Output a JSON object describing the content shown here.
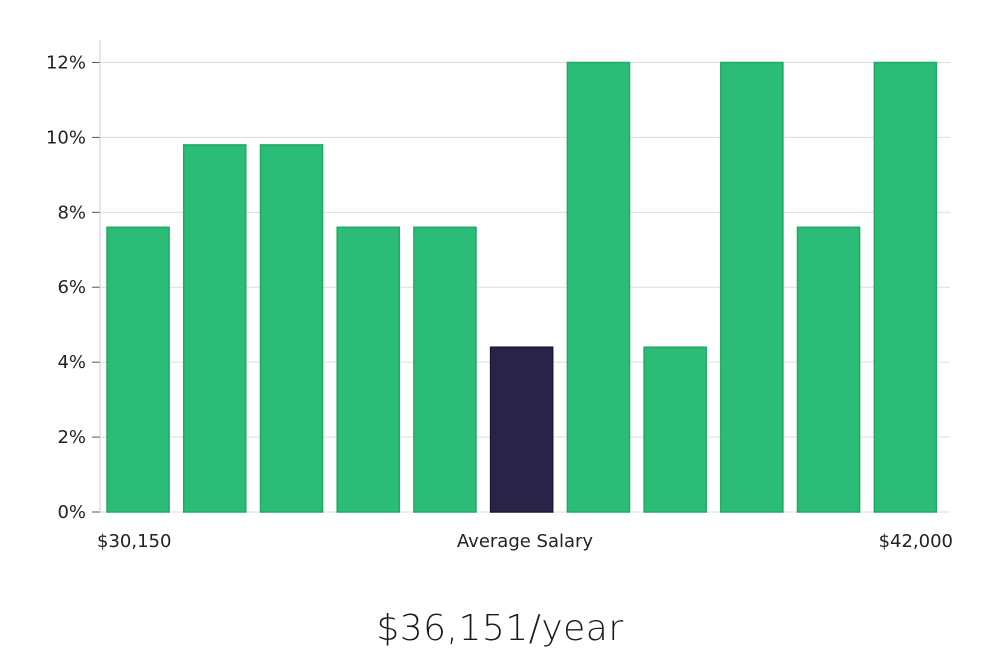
{
  "chart_data": {
    "type": "bar",
    "values": [
      7.6,
      9.8,
      9.8,
      7.6,
      7.6,
      4.4,
      12.0,
      4.4,
      12.0,
      7.6,
      12.0
    ],
    "highlight_index": 5,
    "y_ticks": [
      "0%",
      "2%",
      "4%",
      "6%",
      "8%",
      "10%",
      "12%"
    ],
    "y_tick_values": [
      0,
      2,
      4,
      6,
      8,
      10,
      12
    ],
    "ylim": [
      0,
      12.6
    ],
    "x_labels": {
      "left": "$30,150",
      "center": "Average Salary",
      "right": "$42,000"
    },
    "grid": true
  },
  "colors": {
    "bar": "#2bbd77",
    "bar_stroke": "#22a866",
    "highlight": "#282347",
    "grid": "#dddddd",
    "axis": "#cccccc"
  },
  "summary": {
    "salary": "$36,151/year"
  }
}
